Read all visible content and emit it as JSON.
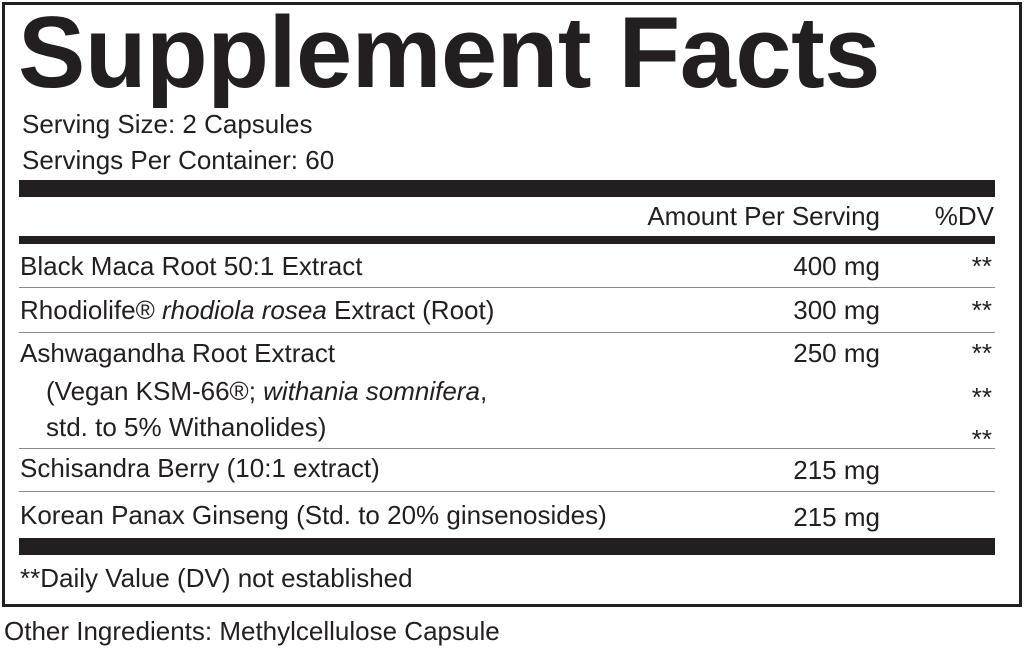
{
  "title": "Supplement Facts",
  "serving_size": "Serving Size: 2 Capsules",
  "servings_per_container": "Servings Per Container: 60",
  "header": {
    "amount": "Amount Per Serving",
    "dv": "%DV"
  },
  "rows": [
    {
      "name": "Black Maca Root 50:1 Extract",
      "amount": "400 mg",
      "dv": "**"
    },
    {
      "name_pre": "Rhodiolife® ",
      "name_italic": "rhodiola rosea",
      "name_post": " Extract (Root)",
      "amount": "300 mg",
      "dv": "**"
    },
    {
      "name": "Ashwagandha Root Extract",
      "line2_pre": "(Vegan KSM-66®; ",
      "line2_italic": "withania somnifera",
      "line2_post": ",",
      "line3": "std. to 5% Withanolides)",
      "amount": "250 mg",
      "dv": "**",
      "dv2": "**",
      "dv3": "**"
    },
    {
      "name": "Schisandra Berry (10:1 extract)",
      "amount": "215 mg",
      "dv": ""
    },
    {
      "name": "Korean Panax Ginseng (Std. to 20% ginsenosides)",
      "amount": "215 mg",
      "dv": ""
    }
  ],
  "footnote": "**Daily Value (DV) not established",
  "other_ingredients": "Other Ingredients: Methylcellulose Capsule"
}
